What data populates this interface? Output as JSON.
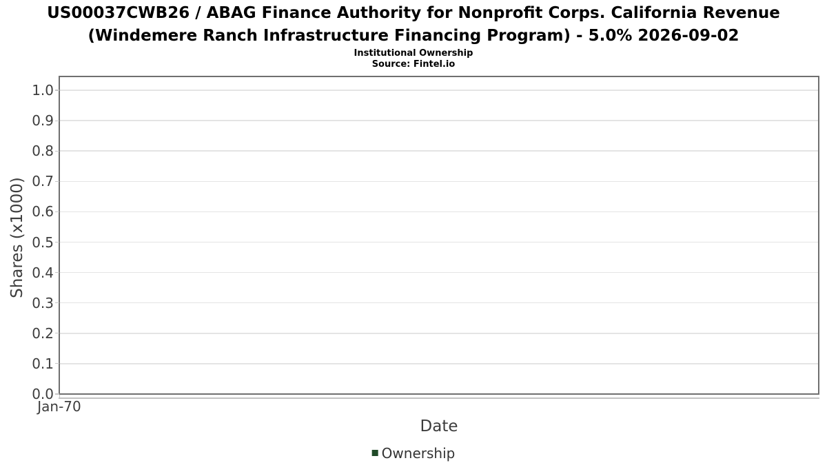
{
  "chart_data": {
    "type": "line",
    "title": "US00037CWB26 / ABAG Finance Authority for Nonprofit Corps. California Revenue (Windemere Ranch Infrastructure Financing Program) - 5.0% 2026-09-02",
    "title_lines": [
      "US00037CWB26 / ABAG Finance Authority for Nonprofit Corps. California Revenue",
      "(Windemere Ranch Infrastructure Financing Program) - 5.0% 2026-09-02"
    ],
    "subtitle": "Institutional Ownership",
    "source": "Source: Fintel.io",
    "xlabel": "Date",
    "ylabel": "Shares (x1000)",
    "ylim": [
      0,
      1.048
    ],
    "yticks": [
      "0.0",
      "0.1",
      "0.2",
      "0.3",
      "0.4",
      "0.5",
      "0.6",
      "0.7",
      "0.8",
      "0.9",
      "1.0"
    ],
    "xticks": [
      {
        "label": "Jan-70",
        "pos": 0
      }
    ],
    "grid": "horizontal-only",
    "legend": {
      "position": "bottom-center",
      "entries": [
        {
          "label": "Ownership",
          "color": "#1f4a28"
        }
      ]
    },
    "series": [
      {
        "name": "Ownership",
        "color": "#1f4a28",
        "x": [],
        "values": []
      }
    ],
    "colors": {
      "plot_border": "#6f6f6f",
      "gridline": "#e4e4e4",
      "axis_line": "#c2c2c2",
      "tick_label": "#3d3d3d",
      "title": "#000000",
      "legend_marker": "#1f4a28"
    }
  }
}
